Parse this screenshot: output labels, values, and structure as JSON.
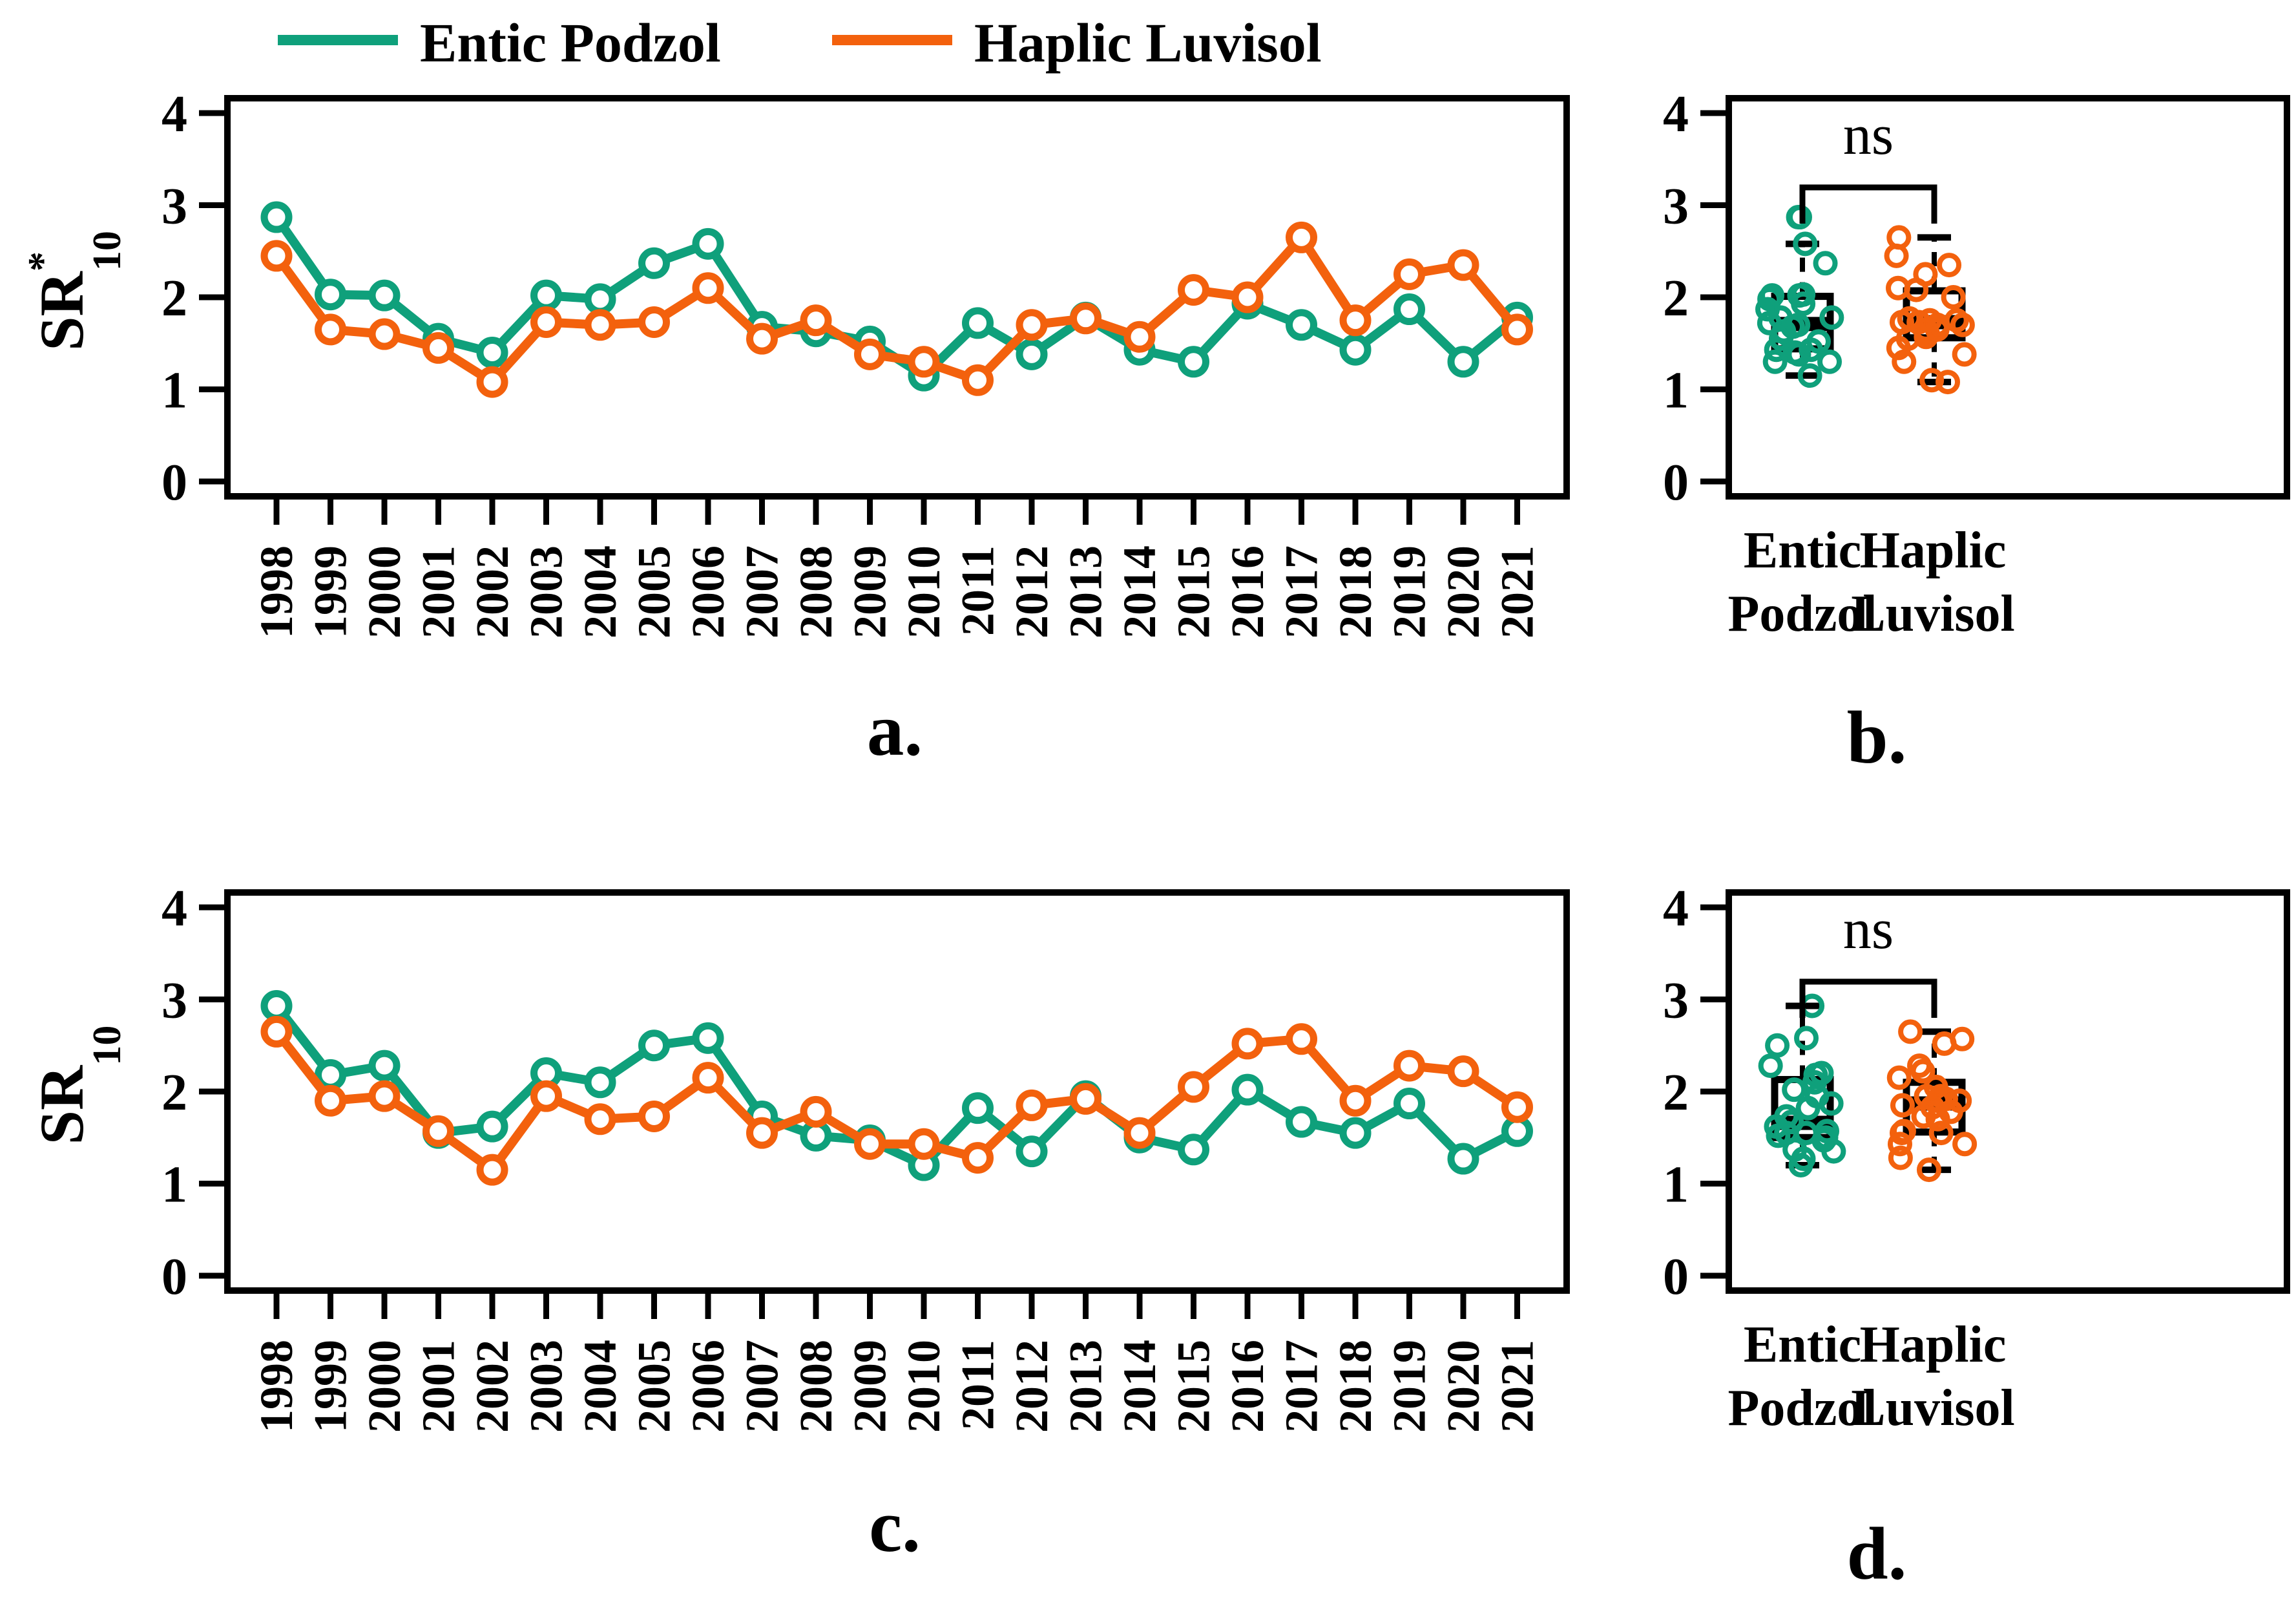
{
  "figure": {
    "background": "#ffffff",
    "axis_color": "#000000",
    "colors": {
      "entic": "#0FA07B",
      "haplic": "#F3610D"
    },
    "legend": {
      "position": "top",
      "items": [
        {
          "label": "Entic Podzol",
          "color_key": "entic"
        },
        {
          "label": "Haplic Luvisol",
          "color_key": "haplic"
        }
      ]
    },
    "y_ticks": [
      "0",
      "1",
      "2",
      "3",
      "4"
    ],
    "years": [
      "1998",
      "1999",
      "2000",
      "2001",
      "2002",
      "2003",
      "2004",
      "2005",
      "2006",
      "2007",
      "2008",
      "2009",
      "2010",
      "2011",
      "2012",
      "2013",
      "2014",
      "2015",
      "2016",
      "2017",
      "2018",
      "2019",
      "2020",
      "2021"
    ]
  },
  "chart_data": [
    {
      "id": "a",
      "type": "line",
      "caption": "a.",
      "ylabel": {
        "base": "SR",
        "sup": "*",
        "sub": "10"
      },
      "ylim": [
        0,
        4
      ],
      "grid": false,
      "categories": [
        1998,
        1999,
        2000,
        2001,
        2002,
        2003,
        2004,
        2005,
        2006,
        2007,
        2008,
        2009,
        2010,
        2011,
        2012,
        2013,
        2014,
        2015,
        2016,
        2017,
        2018,
        2019,
        2020,
        2021
      ],
      "series": [
        {
          "name": "Entic Podzol",
          "color_key": "entic",
          "values": [
            2.87,
            2.03,
            2.02,
            1.55,
            1.4,
            2.02,
            1.98,
            2.37,
            2.58,
            1.68,
            1.63,
            1.52,
            1.15,
            1.72,
            1.38,
            1.78,
            1.43,
            1.3,
            1.93,
            1.7,
            1.43,
            1.87,
            1.3,
            1.78
          ]
        },
        {
          "name": "Haplic Luvisol",
          "color_key": "haplic",
          "values": [
            2.45,
            1.65,
            1.6,
            1.45,
            1.08,
            1.73,
            1.7,
            1.73,
            2.1,
            1.55,
            1.75,
            1.38,
            1.3,
            1.1,
            1.7,
            1.77,
            1.57,
            2.08,
            2.0,
            2.65,
            1.75,
            2.25,
            2.35,
            1.65
          ]
        }
      ]
    },
    {
      "id": "b",
      "type": "boxplot",
      "caption": "b.",
      "annotation": "ns",
      "ylim": [
        0,
        4
      ],
      "groups": [
        {
          "label_lines": [
            "Entic",
            "Podzol"
          ],
          "color_key": "entic",
          "stats": {
            "whisker_low": 1.15,
            "q1": 1.44,
            "median": 1.71,
            "q3": 2.01,
            "whisker_high": 2.58
          },
          "outliers": [
            2.87
          ],
          "points": [
            2.87,
            2.03,
            2.02,
            1.55,
            1.4,
            2.02,
            1.98,
            2.37,
            2.58,
            1.68,
            1.63,
            1.52,
            1.15,
            1.72,
            1.38,
            1.78,
            1.43,
            1.3,
            1.93,
            1.7,
            1.43,
            1.87,
            1.3,
            1.78
          ]
        },
        {
          "label_lines": [
            "Haplic",
            "Luvisol"
          ],
          "color_key": "haplic",
          "stats": {
            "whisker_low": 1.08,
            "q1": 1.56,
            "median": 1.73,
            "q3": 2.07,
            "whisker_high": 2.65
          },
          "outliers": [],
          "points": [
            2.45,
            1.65,
            1.6,
            1.45,
            1.08,
            1.73,
            1.7,
            1.73,
            2.1,
            1.55,
            1.75,
            1.38,
            1.3,
            1.1,
            1.7,
            1.77,
            1.57,
            2.08,
            2.0,
            2.65,
            1.75,
            2.25,
            2.35,
            1.65
          ]
        }
      ]
    },
    {
      "id": "c",
      "type": "line",
      "caption": "c.",
      "ylabel": {
        "base": "SR",
        "sup": "",
        "sub": "10"
      },
      "ylim": [
        0,
        4
      ],
      "grid": false,
      "categories": [
        1998,
        1999,
        2000,
        2001,
        2002,
        2003,
        2004,
        2005,
        2006,
        2007,
        2008,
        2009,
        2010,
        2011,
        2012,
        2013,
        2014,
        2015,
        2016,
        2017,
        2018,
        2019,
        2020,
        2021
      ],
      "series": [
        {
          "name": "Entic Podzol",
          "color_key": "entic",
          "values": [
            2.93,
            2.18,
            2.28,
            1.55,
            1.62,
            2.2,
            2.1,
            2.5,
            2.58,
            1.73,
            1.52,
            1.47,
            1.2,
            1.82,
            1.35,
            1.95,
            1.5,
            1.37,
            2.02,
            1.67,
            1.55,
            1.87,
            1.27,
            1.57
          ]
        },
        {
          "name": "Haplic Luvisol",
          "color_key": "haplic",
          "values": [
            2.65,
            1.9,
            1.95,
            1.57,
            1.15,
            1.95,
            1.7,
            1.73,
            2.15,
            1.55,
            1.78,
            1.43,
            1.43,
            1.28,
            1.85,
            1.92,
            1.55,
            2.05,
            2.52,
            2.57,
            1.9,
            2.28,
            2.22,
            1.83
          ]
        }
      ]
    },
    {
      "id": "d",
      "type": "boxplot",
      "caption": "d.",
      "annotation": "ns",
      "ylim": [
        0,
        4
      ],
      "groups": [
        {
          "label_lines": [
            "Entic",
            "Podzol"
          ],
          "color_key": "entic",
          "stats": {
            "whisker_low": 1.2,
            "q1": 1.5,
            "median": 1.66,
            "q3": 2.13,
            "whisker_high": 2.93
          },
          "outliers": [],
          "points": [
            2.93,
            2.18,
            2.28,
            1.55,
            1.62,
            2.2,
            2.1,
            2.5,
            2.58,
            1.73,
            1.52,
            1.47,
            1.2,
            1.82,
            1.35,
            1.95,
            1.5,
            1.37,
            2.02,
            1.67,
            1.55,
            1.87,
            1.27,
            1.57
          ]
        },
        {
          "label_lines": [
            "Haplic",
            "Luvisol"
          ],
          "color_key": "haplic",
          "stats": {
            "whisker_low": 1.15,
            "q1": 1.56,
            "median": 1.87,
            "q3": 2.1,
            "whisker_high": 2.65
          },
          "outliers": [],
          "points": [
            2.65,
            1.9,
            1.95,
            1.57,
            1.15,
            1.95,
            1.7,
            1.73,
            2.15,
            1.55,
            1.78,
            1.43,
            1.43,
            1.28,
            1.85,
            1.92,
            1.55,
            2.05,
            2.52,
            2.57,
            1.9,
            2.28,
            2.22,
            1.83
          ]
        }
      ]
    }
  ]
}
